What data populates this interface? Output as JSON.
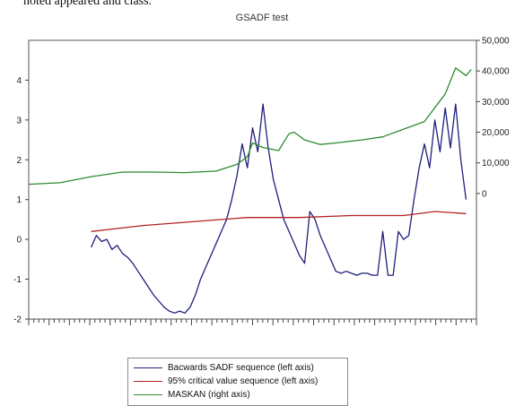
{
  "top_fragment": "noted appeared and class.",
  "chart_data": {
    "type": "line",
    "title": "GSADF test",
    "xlabel": "",
    "ylabel": "",
    "grid": false,
    "legend_position": "bottom",
    "left_axis": {
      "ylim": [
        -2,
        5
      ],
      "ticks": [
        "-2",
        "-1",
        "0",
        "1",
        "2",
        "3",
        "4"
      ]
    },
    "right_axis": {
      "ylim": [
        -41000,
        50000
      ],
      "ticks": [
        "0",
        "10,000",
        "20,000",
        "30,000",
        "40,000",
        "50,000"
      ]
    },
    "x_tick_count": 88,
    "series": [
      {
        "name": "Bacwards SADF sequence (left axis)",
        "axis": "left",
        "color": "#1f1f7a",
        "x": [
          0,
          1,
          2,
          3,
          4,
          5,
          6,
          7,
          8,
          9,
          10,
          11,
          12,
          13,
          14,
          15,
          16,
          17,
          18,
          19,
          20,
          21,
          22,
          23,
          24,
          25,
          26,
          27,
          28,
          29,
          30,
          31,
          32,
          33,
          34,
          35,
          36,
          37,
          38,
          39,
          40,
          41,
          42,
          43,
          44,
          45,
          46,
          47,
          48,
          49,
          50,
          51,
          52,
          53,
          54,
          55,
          56,
          57,
          58,
          59,
          60,
          61,
          62,
          63,
          64,
          65,
          66,
          67,
          68,
          69,
          70,
          71,
          72
        ],
        "values": [
          -0.2,
          0.1,
          -0.05,
          0.0,
          -0.25,
          -0.15,
          -0.35,
          -0.45,
          -0.6,
          -0.8,
          -1.0,
          -1.2,
          -1.4,
          -1.55,
          -1.7,
          -1.8,
          -1.85,
          -1.8,
          -1.85,
          -1.7,
          -1.4,
          -1.0,
          -0.7,
          -0.4,
          -0.1,
          0.2,
          0.5,
          1.0,
          1.6,
          2.4,
          1.8,
          2.8,
          2.2,
          3.4,
          2.3,
          1.5,
          1.0,
          0.5,
          0.2,
          -0.1,
          -0.4,
          -0.6,
          0.7,
          0.5,
          0.1,
          -0.2,
          -0.5,
          -0.8,
          -0.85,
          -0.8,
          -0.85,
          -0.9,
          -0.85,
          -0.85,
          -0.9,
          -0.9,
          0.2,
          -0.9,
          -0.9,
          0.2,
          0.0,
          0.1,
          1.0,
          1.8,
          2.4,
          1.8,
          3.0,
          2.2,
          3.3,
          2.3,
          3.4,
          2.0,
          1.0
        ]
      },
      {
        "name": "95% critical value sequence (left axis)",
        "axis": "left",
        "color": "#b22222",
        "x": [
          0,
          10,
          20,
          30,
          40,
          50,
          60,
          66,
          72
        ],
        "values": [
          0.2,
          0.35,
          0.45,
          0.55,
          0.55,
          0.6,
          0.6,
          0.7,
          0.65
        ]
      },
      {
        "name": "MASKAN (right axis)",
        "axis": "right",
        "color": "#2e8b2e",
        "x": [
          -12,
          -6,
          0,
          6,
          12,
          18,
          24,
          28,
          30,
          31,
          33,
          36,
          38,
          39,
          41,
          44,
          47,
          52,
          56,
          60,
          64,
          66,
          68,
          70,
          72,
          73
        ],
        "values": [
          3000,
          3500,
          5500,
          7000,
          7000,
          6800,
          7300,
          9500,
          12000,
          16500,
          15000,
          14000,
          19500,
          20000,
          17500,
          16000,
          16500,
          17500,
          18500,
          21000,
          23500,
          28000,
          32500,
          41000,
          38500,
          40500
        ]
      }
    ]
  }
}
